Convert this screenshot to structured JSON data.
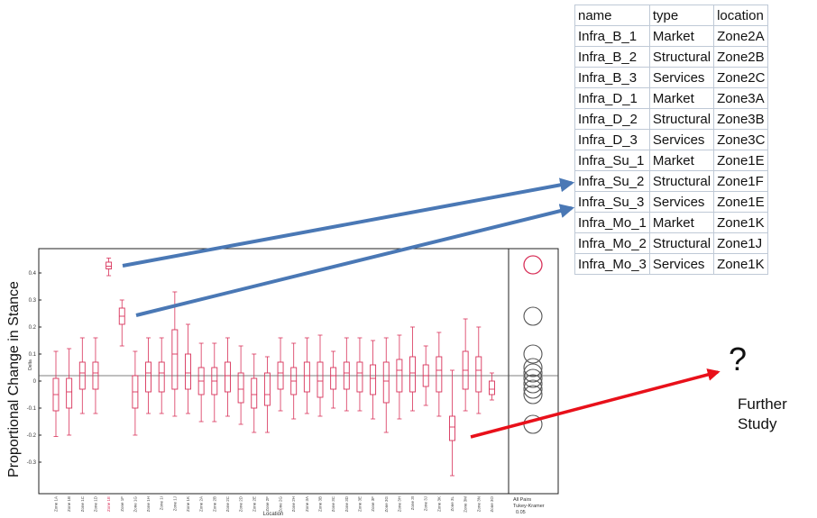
{
  "table": {
    "headers": [
      "name",
      "type",
      "location"
    ],
    "rows": [
      [
        "Infra_B_1",
        "Market",
        "Zone2A"
      ],
      [
        "Infra_B_2",
        "Structural",
        "Zone2B"
      ],
      [
        "Infra_B_3",
        "Services",
        "Zone2C"
      ],
      [
        "Infra_D_1",
        "Market",
        "Zone3A"
      ],
      [
        "Infra_D_2",
        "Structural",
        "Zone3B"
      ],
      [
        "Infra_D_3",
        "Services",
        "Zone3C"
      ],
      [
        "Infra_Su_1",
        "Market",
        "Zone1E"
      ],
      [
        "Infra_Su_2",
        "Structural",
        "Zone1F"
      ],
      [
        "Infra_Su_3",
        "Services",
        "Zone1E"
      ],
      [
        "Infra_Mo_1",
        "Market",
        "Zone1K"
      ],
      [
        "Infra_Mo_2",
        "Structural",
        "Zone1J"
      ],
      [
        "Infra_Mo_3",
        "Services",
        "Zone1K"
      ]
    ]
  },
  "annotation": {
    "question": "?",
    "further_line1": "Further",
    "further_line2": "Study"
  },
  "colors": {
    "box": "#d8325a",
    "blue_arrow": "#4a78b5",
    "red_arrow": "#e8101a",
    "circle": "#555555"
  },
  "chart_data": {
    "type": "boxplot",
    "title": "",
    "ylabel": "Proportional Change in Stance",
    "ylabel_small": "Delta",
    "xlabel": "Location",
    "ylim": [
      -0.37,
      0.49
    ],
    "yticks": [
      -0.3,
      -0.2,
      -0.1,
      0,
      0.1,
      0.2,
      0.3,
      0.4
    ],
    "ytick_labels": [
      "-0.3",
      "-0.2",
      "-0.1",
      "0",
      "0.1",
      "0.2",
      "0.3",
      "0.4"
    ],
    "reference_line": 0.02,
    "highlight_color_label": "Zone 1E",
    "boxes": [
      {
        "label": "Zone 1A",
        "wlo": -0.205,
        "q1": -0.11,
        "med": -0.05,
        "q3": 0.01,
        "whi": 0.11
      },
      {
        "label": "Zone 1B",
        "wlo": -0.2,
        "q1": -0.1,
        "med": -0.04,
        "q3": 0.01,
        "whi": 0.12
      },
      {
        "label": "Zone 1C",
        "wlo": -0.12,
        "q1": -0.03,
        "med": 0.03,
        "q3": 0.07,
        "whi": 0.16
      },
      {
        "label": "Zone 1D",
        "wlo": -0.12,
        "q1": -0.03,
        "med": 0.03,
        "q3": 0.07,
        "whi": 0.16
      },
      {
        "label": "Zone 1E",
        "wlo": 0.39,
        "q1": 0.415,
        "med": 0.425,
        "q3": 0.44,
        "whi": 0.455
      },
      {
        "label": "Zone 1F",
        "wlo": 0.13,
        "q1": 0.21,
        "med": 0.24,
        "q3": 0.27,
        "whi": 0.3
      },
      {
        "label": "Zone 1G",
        "wlo": -0.2,
        "q1": -0.1,
        "med": -0.04,
        "q3": 0.02,
        "whi": 0.11
      },
      {
        "label": "Zone 1H",
        "wlo": -0.12,
        "q1": -0.04,
        "med": 0.03,
        "q3": 0.07,
        "whi": 0.16
      },
      {
        "label": "Zone 1I",
        "wlo": -0.12,
        "q1": -0.04,
        "med": 0.03,
        "q3": 0.07,
        "whi": 0.16
      },
      {
        "label": "Zone 1J",
        "wlo": -0.13,
        "q1": -0.03,
        "med": 0.1,
        "q3": 0.19,
        "whi": 0.33
      },
      {
        "label": "Zone 1K",
        "wlo": -0.12,
        "q1": -0.03,
        "med": 0.03,
        "q3": 0.1,
        "whi": 0.21
      },
      {
        "label": "Zone 2A",
        "wlo": -0.15,
        "q1": -0.05,
        "med": 0.0,
        "q3": 0.05,
        "whi": 0.14
      },
      {
        "label": "Zone 2B",
        "wlo": -0.15,
        "q1": -0.05,
        "med": 0.0,
        "q3": 0.05,
        "whi": 0.14
      },
      {
        "label": "Zone 2C",
        "wlo": -0.13,
        "q1": -0.04,
        "med": 0.02,
        "q3": 0.07,
        "whi": 0.16
      },
      {
        "label": "Zone 2D",
        "wlo": -0.16,
        "q1": -0.08,
        "med": -0.03,
        "q3": 0.03,
        "whi": 0.13
      },
      {
        "label": "Zone 2E",
        "wlo": -0.19,
        "q1": -0.1,
        "med": -0.05,
        "q3": 0.01,
        "whi": 0.1
      },
      {
        "label": "Zone 2F",
        "wlo": -0.19,
        "q1": -0.09,
        "med": -0.05,
        "q3": 0.03,
        "whi": 0.09
      },
      {
        "label": "Zone 2G",
        "wlo": -0.11,
        "q1": -0.03,
        "med": 0.03,
        "q3": 0.07,
        "whi": 0.16
      },
      {
        "label": "Zone 2H",
        "wlo": -0.14,
        "q1": -0.05,
        "med": 0.0,
        "q3": 0.05,
        "whi": 0.14
      },
      {
        "label": "Zone 3A",
        "wlo": -0.12,
        "q1": -0.04,
        "med": 0.02,
        "q3": 0.07,
        "whi": 0.16
      },
      {
        "label": "Zone 3B",
        "wlo": -0.13,
        "q1": -0.06,
        "med": 0.0,
        "q3": 0.07,
        "whi": 0.17
      },
      {
        "label": "Zone 3C",
        "wlo": -0.1,
        "q1": -0.03,
        "med": 0.02,
        "q3": 0.05,
        "whi": 0.11
      },
      {
        "label": "Zone 3D",
        "wlo": -0.11,
        "q1": -0.03,
        "med": 0.03,
        "q3": 0.07,
        "whi": 0.16
      },
      {
        "label": "Zone 3E",
        "wlo": -0.11,
        "q1": -0.04,
        "med": 0.03,
        "q3": 0.07,
        "whi": 0.16
      },
      {
        "label": "Zone 3F",
        "wlo": -0.14,
        "q1": -0.05,
        "med": 0.01,
        "q3": 0.06,
        "whi": 0.15
      },
      {
        "label": "Zone 3G",
        "wlo": -0.19,
        "q1": -0.08,
        "med": 0.0,
        "q3": 0.07,
        "whi": 0.16
      },
      {
        "label": "Zone 3H",
        "wlo": -0.14,
        "q1": -0.04,
        "med": 0.04,
        "q3": 0.08,
        "whi": 0.17
      },
      {
        "label": "Zone 3I",
        "wlo": -0.11,
        "q1": -0.04,
        "med": 0.03,
        "q3": 0.09,
        "whi": 0.2
      },
      {
        "label": "Zone 3J",
        "wlo": -0.09,
        "q1": -0.02,
        "med": 0.02,
        "q3": 0.06,
        "whi": 0.13
      },
      {
        "label": "Zone 3K",
        "wlo": -0.13,
        "q1": -0.04,
        "med": 0.04,
        "q3": 0.09,
        "whi": 0.18
      },
      {
        "label": "Zone 3L",
        "wlo": -0.35,
        "q1": -0.22,
        "med": -0.17,
        "q3": -0.13,
        "whi": 0.04
      },
      {
        "label": "Zone 3M",
        "wlo": -0.11,
        "q1": -0.03,
        "med": 0.04,
        "q3": 0.11,
        "whi": 0.23
      },
      {
        "label": "Zone 3N",
        "wlo": -0.12,
        "q1": -0.04,
        "med": 0.04,
        "q3": 0.09,
        "whi": 0.2
      },
      {
        "label": "Zone 3O",
        "wlo": -0.07,
        "q1": -0.05,
        "med": -0.03,
        "q3": 0.0,
        "whi": 0.03
      }
    ],
    "comparison_panel": {
      "labels": [
        "All Pairs",
        "Tukey-Kramer",
        "0.05"
      ],
      "circles": [
        {
          "center": 0.43,
          "highlight": true
        },
        {
          "center": 0.24,
          "highlight": false
        },
        {
          "center": 0.1,
          "highlight": false
        },
        {
          "center": 0.05,
          "highlight": false
        },
        {
          "center": 0.03,
          "highlight": false
        },
        {
          "center": 0.01,
          "highlight": false
        },
        {
          "center": -0.01,
          "highlight": false
        },
        {
          "center": -0.03,
          "highlight": false
        },
        {
          "center": -0.05,
          "highlight": false
        },
        {
          "center": -0.16,
          "highlight": false
        }
      ]
    }
  }
}
